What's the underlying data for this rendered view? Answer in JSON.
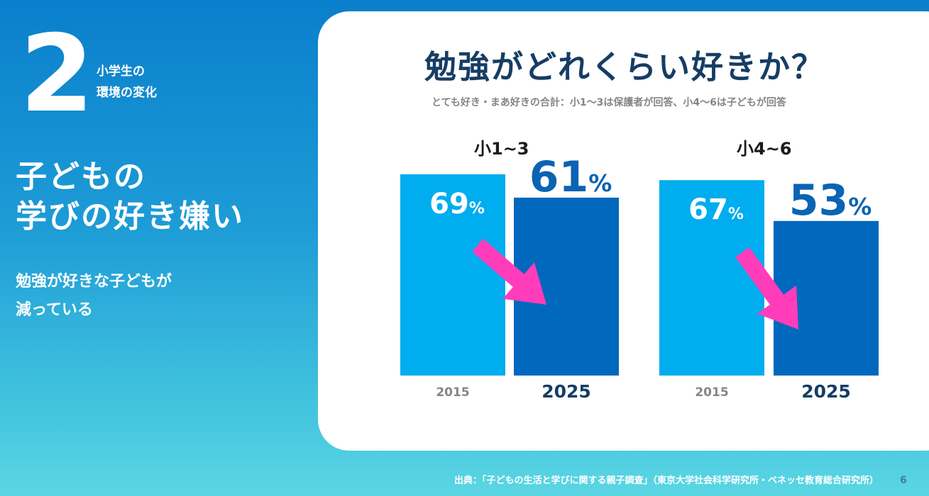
{
  "section": {
    "number": "2",
    "label_line1": "小学生の",
    "label_line2": "環境の変化"
  },
  "left": {
    "title_line1": "子どもの",
    "title_line2": "学びの好き嫌い",
    "subtitle_line1": "勉強が好きな子どもが",
    "subtitle_line2": "減っている"
  },
  "colors": {
    "bar_2015": "#00adee",
    "bar_2025": "#0068bd",
    "arrow": "#ff3dbb",
    "label_2025": "#0b63b3",
    "label_2015": "#ffffff"
  },
  "chart_data": {
    "type": "bar",
    "title": "勉強がどれくらい好きか？",
    "subtitle": "とても好き・まあ好きの合計：小1〜3は保護者が回答、小4〜6は子どもが回答",
    "categories": [
      "小1~3",
      "小4~6"
    ],
    "x_labels": [
      "2015",
      "2025"
    ],
    "unit": "%",
    "series": [
      {
        "name": "2015",
        "values": [
          69,
          67
        ]
      },
      {
        "name": "2025",
        "values": [
          61,
          53
        ]
      }
    ],
    "ylim": [
      0,
      100
    ],
    "grid": false
  },
  "footer": {
    "source": "出典：「子どもの生活と学びに関する親子調査」（東京大学社会科学研究所・ベネッセ教育総合研究所）",
    "page": "6"
  }
}
